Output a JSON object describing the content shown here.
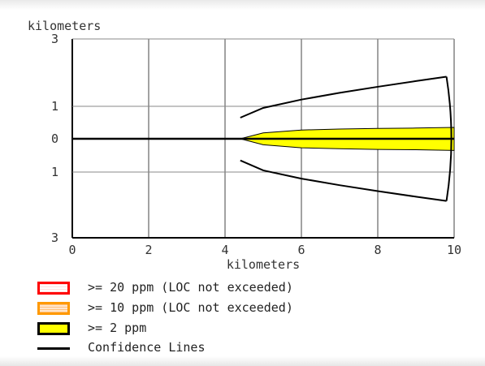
{
  "chart_data": {
    "type": "area",
    "xlabel": "kilometers",
    "ylabel": "kilometers",
    "xlim": [
      0,
      10
    ],
    "ylim": [
      -3,
      3
    ],
    "x_ticks": [
      "0",
      "2",
      "4",
      "6",
      "8",
      "10"
    ],
    "y_ticks": [
      "3",
      "1",
      "0",
      "1",
      "3"
    ],
    "grid": true,
    "series": [
      {
        "name": ">= 2 ppm",
        "color": "#ffff00",
        "x": [
          4.4,
          5.0,
          6.0,
          7.0,
          8.0,
          9.0,
          10.0
        ],
        "y_upper": [
          0.0,
          0.18,
          0.27,
          0.3,
          0.32,
          0.33,
          0.35
        ],
        "y_lower": [
          0.0,
          -0.18,
          -0.27,
          -0.3,
          -0.32,
          -0.33,
          -0.35
        ]
      },
      {
        "name": "Confidence Lines",
        "color": "#000000",
        "x": [
          4.4,
          5.0,
          6.0,
          7.0,
          8.0,
          9.0,
          9.8
        ],
        "y_upper": [
          0.65,
          0.95,
          1.2,
          1.4,
          1.58,
          1.75,
          1.88
        ],
        "y_lower": [
          -0.65,
          -0.95,
          -1.2,
          -1.4,
          -1.58,
          -1.75,
          -1.88
        ]
      }
    ],
    "centerline": {
      "x": [
        0,
        10
      ],
      "y": [
        0,
        0
      ]
    }
  },
  "legend": [
    {
      "label": ">= 20 ppm (LOC not exceeded)",
      "fill": "#ffffff",
      "border": "#ff0000"
    },
    {
      "label": ">= 10 ppm (LOC not exceeded)",
      "fill": "#ffe0c0",
      "border": "#ff9900"
    },
    {
      "label": ">= 2 ppm",
      "fill": "#ffff00",
      "border": "#000000"
    },
    {
      "label": "Confidence Lines",
      "fill": "#000000",
      "border": "#000000"
    }
  ]
}
